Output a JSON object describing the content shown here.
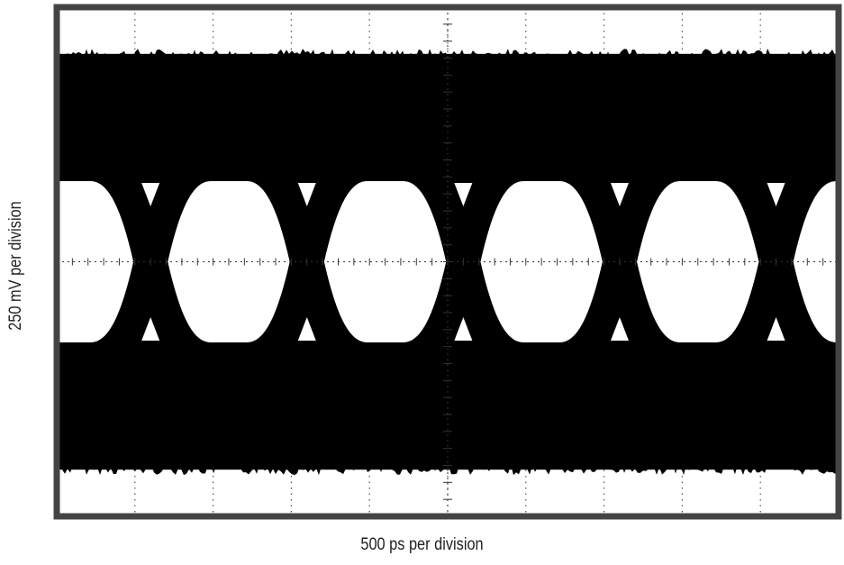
{
  "chart_data": {
    "type": "eye-diagram",
    "title": "",
    "xlabel": "500 ps per division",
    "ylabel": "250 mV per division",
    "x_divisions": 10,
    "y_divisions": 6,
    "grid": true,
    "grid_style": "dotted",
    "background_color": "#ffffff",
    "trace_color": "#000000",
    "frame_color": "#444444",
    "eye_count": 5,
    "crossing_count": 5
  }
}
